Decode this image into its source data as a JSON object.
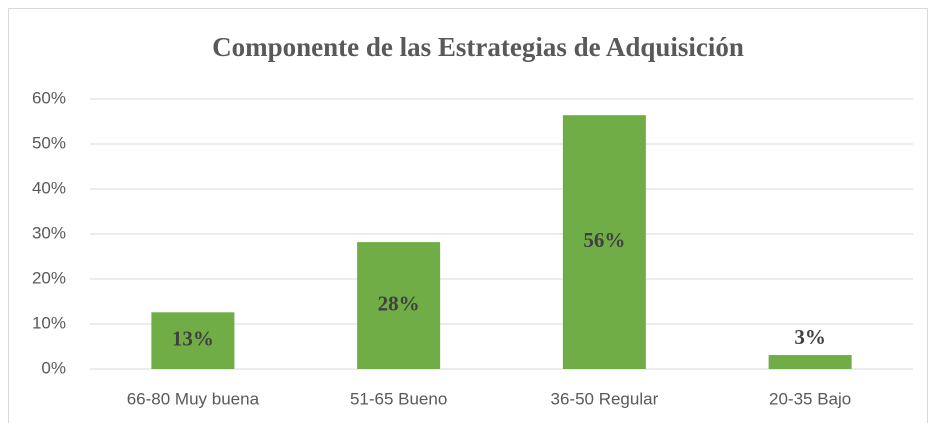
{
  "chart_data": {
    "type": "bar",
    "title": "Componente de las Estrategias de Adquisición",
    "categories": [
      "66-80 Muy buena",
      "51-65 Bueno",
      "36-50 Regular",
      "20-35 Bajo"
    ],
    "values": [
      12.6,
      28.2,
      56.4,
      3.1
    ],
    "value_labels": [
      "13%",
      "28%",
      "56%",
      "3%"
    ],
    "color": "#70ad47",
    "ylim": [
      0,
      60
    ],
    "yticks": [
      {
        "value": 0,
        "label": "0%"
      },
      {
        "value": 10,
        "label": "10%"
      },
      {
        "value": 20,
        "label": "20%"
      },
      {
        "value": 30,
        "label": "30%"
      },
      {
        "value": 40,
        "label": "40%"
      },
      {
        "value": 50,
        "label": "50%"
      },
      {
        "value": 60,
        "label": "60%"
      }
    ],
    "grid": true
  }
}
